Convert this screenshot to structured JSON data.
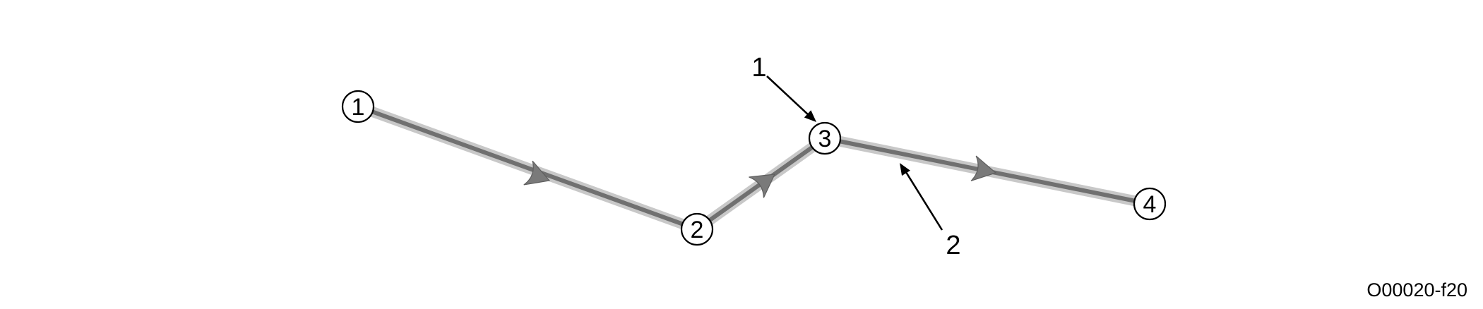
{
  "nodes": [
    {
      "id": "1",
      "label": "1"
    },
    {
      "id": "2",
      "label": "2"
    },
    {
      "id": "3",
      "label": "3"
    },
    {
      "id": "4",
      "label": "4"
    }
  ],
  "callouts": [
    {
      "label": "1",
      "points_to": "node 3"
    },
    {
      "label": "2",
      "points_to": "segment between node 3 and node 4"
    }
  ],
  "figure_id": "O00020-f20",
  "colors": {
    "path_outer": "#c8c8c8",
    "path_inner": "#707070",
    "direction_arrow": "#7a7a7a",
    "ink": "#000000"
  }
}
